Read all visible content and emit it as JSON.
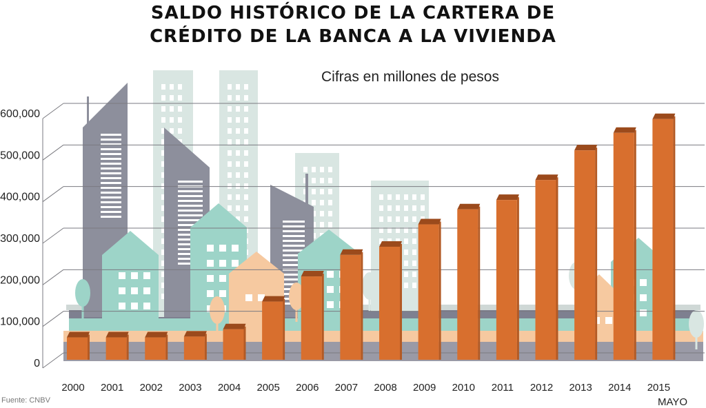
{
  "title_line1": "SALDO HISTÓRICO DE LA CARTERA DE",
  "title_line2": "CRÉDITO DE LA BANCA A LA VIVIENDA",
  "subtitle": "Cifras en millones de pesos",
  "source": "Fuente: CNBV",
  "last_year_note": "MAYO",
  "colors": {
    "bar_front": "#d86f2e",
    "bar_top": "#9b4a1c",
    "bar_side": "#b35a24",
    "grid": "#7a7a80",
    "tower_gray": "#8d8f9c",
    "house_teal": "#9dd4c8",
    "house_peach": "#f6c9a0",
    "tower_mint": "#d9e6e2",
    "ground_gray": "#9a9aa6"
  },
  "chart_data": {
    "type": "bar",
    "title": "SALDO HISTÓRICO DE LA CARTERA DE CRÉDITO DE LA BANCA A LA VIVIENDA",
    "subtitle": "Cifras en millones de pesos",
    "categories": [
      "2000",
      "2001",
      "2002",
      "2003",
      "2004",
      "2005",
      "2006",
      "2007",
      "2008",
      "2009",
      "2010",
      "2011",
      "2012",
      "2013",
      "2014",
      "2015"
    ],
    "values": [
      55000,
      55000,
      55000,
      57000,
      75000,
      143000,
      205000,
      258000,
      278000,
      333000,
      370000,
      393000,
      442000,
      515000,
      558000,
      592000
    ],
    "ylim": [
      0,
      600000
    ],
    "yticks": [
      "0",
      "100,000",
      "200,000",
      "300,000",
      "400,000",
      "500,000",
      "600,000"
    ],
    "grid": true,
    "legend": "none"
  }
}
